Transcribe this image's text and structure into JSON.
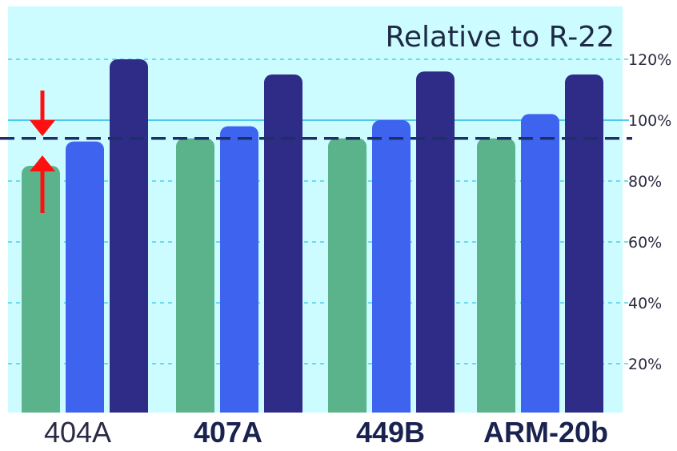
{
  "chart_data": {
    "type": "bar",
    "title": "Relative to R-22",
    "categories": [
      "404A",
      "407A",
      "449B",
      "ARM-20b"
    ],
    "category_bold": [
      false,
      true,
      true,
      true
    ],
    "series": [
      {
        "color": "#5bb38c",
        "values": [
          85,
          94,
          94,
          94
        ]
      },
      {
        "color": "#3d63ef",
        "values": [
          93,
          98,
          100,
          102
        ]
      },
      {
        "color": "#2e2c87",
        "values": [
          120,
          115,
          116,
          115
        ]
      }
    ],
    "yticks": [
      20,
      40,
      60,
      80,
      100,
      120
    ],
    "ytick_labels": [
      "20%",
      "40%",
      "60%",
      "80%",
      "100%",
      "120%"
    ],
    "ylim": [
      0,
      130
    ],
    "reference_line": {
      "value": 94,
      "style": "dashed",
      "color": "#1c2f66"
    },
    "annotation_arrows": {
      "category": "404A",
      "color": "#ff1010"
    },
    "plot_background": "#ccfcff",
    "legend": "none"
  }
}
